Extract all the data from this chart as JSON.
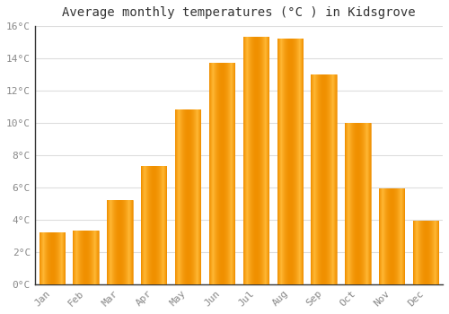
{
  "title": "Average monthly temperatures (°C ) in Kidsgrove",
  "months": [
    "Jan",
    "Feb",
    "Mar",
    "Apr",
    "May",
    "Jun",
    "Jul",
    "Aug",
    "Sep",
    "Oct",
    "Nov",
    "Dec"
  ],
  "values": [
    3.2,
    3.3,
    5.2,
    7.3,
    10.8,
    13.7,
    15.3,
    15.2,
    13.0,
    10.0,
    5.9,
    3.9
  ],
  "bar_color_center": "#FFB733",
  "bar_color_edge": "#F09000",
  "ylim": [
    0,
    16
  ],
  "yticks": [
    0,
    2,
    4,
    6,
    8,
    10,
    12,
    14,
    16
  ],
  "ytick_labels": [
    "0°C",
    "2°C",
    "4°C",
    "6°C",
    "8°C",
    "10°C",
    "12°C",
    "14°C",
    "16°C"
  ],
  "background_color": "#ffffff",
  "grid_color": "#dddddd",
  "title_fontsize": 10,
  "tick_fontsize": 8,
  "tick_color": "#888888",
  "font_family": "monospace",
  "bar_width": 0.75,
  "left_spine_color": "#333333",
  "bottom_spine_color": "#333333"
}
